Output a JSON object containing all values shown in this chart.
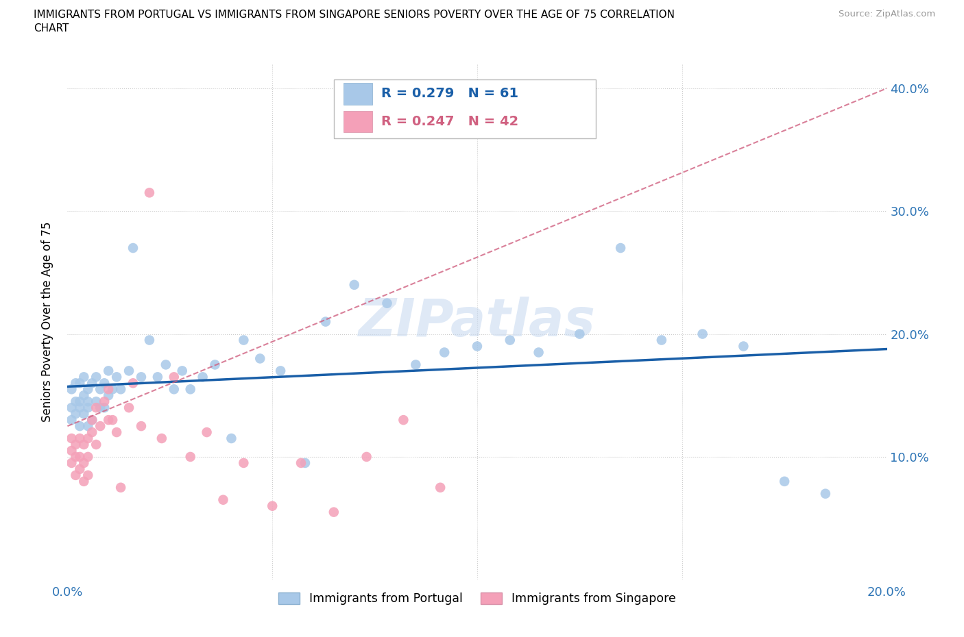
{
  "title_line1": "IMMIGRANTS FROM PORTUGAL VS IMMIGRANTS FROM SINGAPORE SENIORS POVERTY OVER THE AGE OF 75 CORRELATION",
  "title_line2": "CHART",
  "source": "Source: ZipAtlas.com",
  "ylabel": "Seniors Poverty Over the Age of 75",
  "xlim": [
    0.0,
    0.2
  ],
  "ylim": [
    0.0,
    0.42
  ],
  "R_portugal": 0.279,
  "N_portugal": 61,
  "R_singapore": 0.247,
  "N_singapore": 42,
  "color_portugal": "#a8c8e8",
  "color_singapore": "#f4a0b8",
  "line_color_portugal": "#1a5fa8",
  "line_color_singapore": "#d06080",
  "watermark": "ZIPatlas",
  "legend_label_portugal": "Immigrants from Portugal",
  "legend_label_singapore": "Immigrants from Singapore",
  "portugal_x": [
    0.001,
    0.001,
    0.001,
    0.002,
    0.002,
    0.002,
    0.003,
    0.003,
    0.003,
    0.003,
    0.004,
    0.004,
    0.004,
    0.005,
    0.005,
    0.005,
    0.005,
    0.006,
    0.006,
    0.007,
    0.007,
    0.008,
    0.008,
    0.009,
    0.009,
    0.01,
    0.01,
    0.011,
    0.012,
    0.013,
    0.015,
    0.016,
    0.018,
    0.02,
    0.022,
    0.024,
    0.026,
    0.028,
    0.03,
    0.033,
    0.036,
    0.04,
    0.043,
    0.047,
    0.052,
    0.058,
    0.063,
    0.07,
    0.078,
    0.085,
    0.092,
    0.1,
    0.108,
    0.115,
    0.125,
    0.135,
    0.145,
    0.155,
    0.165,
    0.175,
    0.185
  ],
  "portugal_y": [
    0.14,
    0.155,
    0.13,
    0.145,
    0.135,
    0.16,
    0.125,
    0.145,
    0.16,
    0.14,
    0.15,
    0.135,
    0.165,
    0.14,
    0.125,
    0.155,
    0.145,
    0.16,
    0.13,
    0.145,
    0.165,
    0.14,
    0.155,
    0.16,
    0.14,
    0.15,
    0.17,
    0.155,
    0.165,
    0.155,
    0.17,
    0.27,
    0.165,
    0.195,
    0.165,
    0.175,
    0.155,
    0.17,
    0.155,
    0.165,
    0.175,
    0.115,
    0.195,
    0.18,
    0.17,
    0.095,
    0.21,
    0.24,
    0.225,
    0.175,
    0.185,
    0.19,
    0.195,
    0.185,
    0.2,
    0.27,
    0.195,
    0.2,
    0.19,
    0.08,
    0.07
  ],
  "singapore_x": [
    0.001,
    0.001,
    0.001,
    0.002,
    0.002,
    0.002,
    0.003,
    0.003,
    0.003,
    0.004,
    0.004,
    0.004,
    0.005,
    0.005,
    0.005,
    0.006,
    0.006,
    0.007,
    0.007,
    0.008,
    0.009,
    0.01,
    0.01,
    0.011,
    0.012,
    0.013,
    0.015,
    0.016,
    0.018,
    0.02,
    0.023,
    0.026,
    0.03,
    0.034,
    0.038,
    0.043,
    0.05,
    0.057,
    0.065,
    0.073,
    0.082,
    0.091
  ],
  "singapore_y": [
    0.115,
    0.095,
    0.105,
    0.1,
    0.085,
    0.11,
    0.09,
    0.1,
    0.115,
    0.08,
    0.095,
    0.11,
    0.085,
    0.1,
    0.115,
    0.13,
    0.12,
    0.14,
    0.11,
    0.125,
    0.145,
    0.13,
    0.155,
    0.13,
    0.12,
    0.075,
    0.14,
    0.16,
    0.125,
    0.315,
    0.115,
    0.165,
    0.1,
    0.12,
    0.065,
    0.095,
    0.06,
    0.095,
    0.055,
    0.1,
    0.13,
    0.075
  ]
}
